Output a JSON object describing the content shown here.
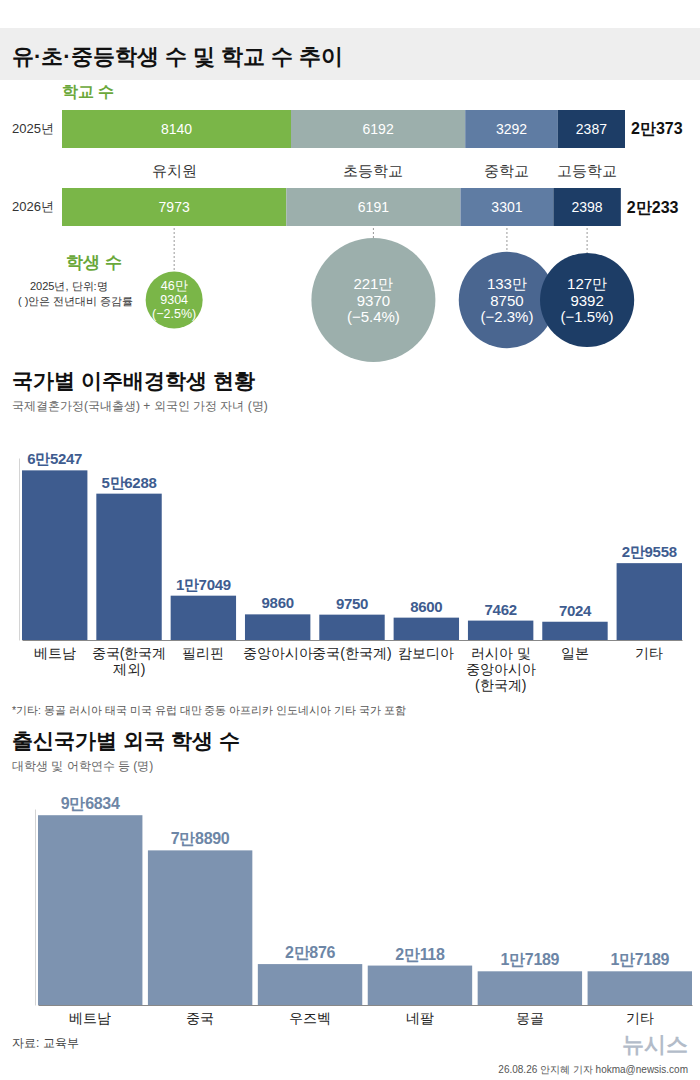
{
  "title": "유·초·중등학생 수 및 학교 수 추이",
  "source": "자료: 교육부",
  "credit": "26.08.26 안지혜 기자 hokma@newsis.com",
  "logo": "뉴시스",
  "chart_data": [
    {
      "type": "bar",
      "orientation": "horizontal",
      "stacked": true,
      "title": "학교 수",
      "categories": [
        "2025년",
        "2026년"
      ],
      "series": [
        {
          "name": "유치원",
          "color": "#7ab648",
          "values": [
            8140,
            7973
          ]
        },
        {
          "name": "초등학교",
          "color": "#9cafac",
          "values": [
            6192,
            6191
          ]
        },
        {
          "name": "중학교",
          "color": "#5f7ca3",
          "values": [
            3292,
            3301
          ]
        },
        {
          "name": "고등학교",
          "color": "#1d3d66",
          "values": [
            2387,
            2398
          ]
        }
      ],
      "totals": [
        20373,
        20233
      ],
      "total_labels": [
        "2만373",
        "2만233"
      ],
      "xlim": [
        0,
        20100
      ],
      "data_labels": true,
      "tick_labels": "y"
    },
    {
      "type": "bubble",
      "title": "학생 수",
      "subtitle": "2025년, 단위:명",
      "annotations": [
        "( )안은 전년대비 증감률"
      ],
      "values": [
        469304,
        2219370,
        1338750,
        1279392
      ],
      "value_labels": [
        "46만9304",
        "221만9370",
        "133만8750",
        "127만9392"
      ],
      "change": [
        -2.5,
        -5.4,
        -2.3,
        -1.5
      ],
      "change_labels": [
        "(−2.5%)",
        "(−5.4%)",
        "(−2.3%)",
        "(−1.5%)"
      ],
      "colors": [
        "#7ab648",
        "#9cafac",
        "#4a6690",
        "#1d3d66"
      ],
      "data_labels": true
    },
    {
      "type": "bar",
      "title": "국가별 이주배경학생 현황",
      "subtitle": "국제결혼가정(국내출생) + 외국인 가정 자녀 (명)",
      "categories": [
        "베트남",
        "중국(한국계 제외)",
        "필리핀",
        "중앙아시아",
        "중국(한국계)",
        "캄보디아",
        "러시아 및 중앙아시아(한국계)",
        "일본",
        "기타"
      ],
      "values": [
        65247,
        56288,
        17049,
        9860,
        9750,
        8600,
        7462,
        7024,
        29558
      ],
      "value_labels": [
        "6만5247",
        "5만6288",
        "1만7049",
        "9860",
        "9750",
        "8600",
        "7462",
        "7024",
        "2만9558"
      ],
      "color": "#3e5c8f",
      "ylim": [
        0,
        70000
      ],
      "data_labels": true,
      "tick_labels": "x",
      "annotations": [
        "*기타: 몽골 러시아 태국 미국 유럽 대만 중동 아프리카 인도네시아 기타 국가 포함"
      ]
    },
    {
      "type": "bar",
      "title": "출신국가별 외국 학생 수",
      "subtitle": "대학생 및 어학연수 등 (명)",
      "categories": [
        "베트남",
        "중국",
        "우즈벡",
        "네팔",
        "몽골",
        "기타"
      ],
      "values": [
        96834,
        78890,
        20876,
        20118,
        17189,
        17189
      ],
      "value_labels": [
        "9만6834",
        "7만8890",
        "2만876",
        "2만118",
        "1만7189",
        "1만7189"
      ],
      "color": "#7d93b0",
      "ylim": [
        0,
        100000
      ],
      "data_labels": true,
      "tick_labels": "x"
    }
  ]
}
